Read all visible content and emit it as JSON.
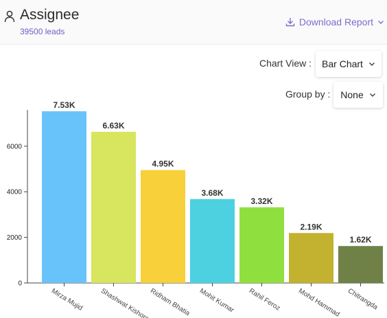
{
  "header": {
    "title": "Assignee",
    "subtitle": "39500 leads",
    "download_label": "Download Report",
    "user_icon": "user-icon",
    "download_icon": "download-icon",
    "accent_color": "#7a6fd0"
  },
  "controls": {
    "chart_view_label": "Chart View :",
    "chart_view_value": "Bar Chart",
    "group_by_label": "Group by :",
    "group_by_value": "None"
  },
  "chart_data": {
    "type": "bar",
    "categories": [
      "Mirza Mujid",
      "Shashwat Kishore",
      "Ridham Bhatia",
      "Mohit Kumar",
      "Rahil Feroz",
      "Mohd Hammad",
      "Chitrangda"
    ],
    "values": [
      7530,
      6630,
      4950,
      3680,
      3320,
      2190,
      1620
    ],
    "data_labels": [
      "7.53K",
      "6.63K",
      "4.95K",
      "3.68K",
      "3.32K",
      "2.19K",
      "1.62K"
    ],
    "colors": [
      "#69c3fb",
      "#d8e55e",
      "#f7d03a",
      "#4dd1e1",
      "#8fe03e",
      "#c2b22f",
      "#6f8147"
    ],
    "yticks": [
      0,
      2000,
      4000,
      6000
    ],
    "ylim": [
      0,
      7530
    ],
    "grid": false,
    "legend": "none"
  }
}
